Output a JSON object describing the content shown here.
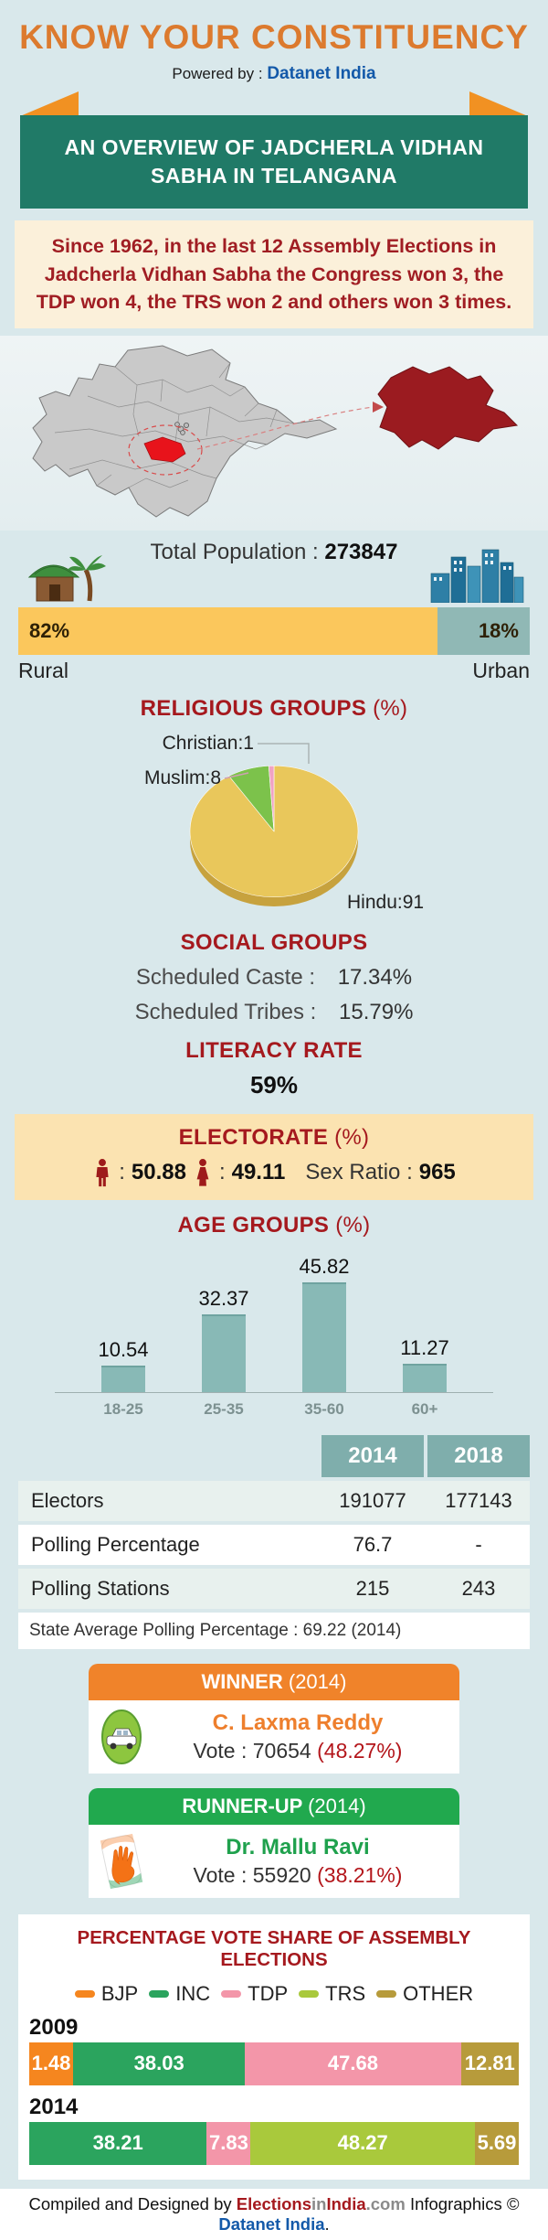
{
  "header": {
    "title": "KNOW YOUR CONSTITUENCY",
    "powered_by": "Powered by :",
    "powered_brand": "Datanet India"
  },
  "banner": {
    "text": "AN OVERVIEW OF JADCHERLA VIDHAN SABHA IN TELANGANA"
  },
  "intro": {
    "text": "Since 1962, in the last 12 Assembly Elections in Jadcherla Vidhan Sabha the Congress won 3, the TDP won 4, the TRS won 2 and others won 3 times."
  },
  "population": {
    "label": "Total Population :",
    "value": "273847",
    "rural_pct": "82%",
    "urban_pct": "18%",
    "rural_value": 82,
    "urban_value": 18,
    "rural_label": "Rural",
    "urban_label": "Urban"
  },
  "religion": {
    "heading": "RELIGIOUS GROUPS",
    "heading_suffix": "(%)"
  },
  "social": {
    "heading": "SOCIAL GROUPS",
    "rows": [
      {
        "label": "Scheduled Caste :",
        "value": "17.34%"
      },
      {
        "label": "Scheduled Tribes :",
        "value": "15.79%"
      }
    ]
  },
  "literacy": {
    "heading": "LITERACY RATE",
    "value": "59%"
  },
  "electorate": {
    "heading": "ELECTORATE",
    "heading_suffix": "(%)",
    "male_value": "50.88",
    "female_value": "49.11",
    "sex_ratio_label": "Sex Ratio :",
    "sex_ratio": "965",
    "colon": ":"
  },
  "age": {
    "heading": "AGE GROUPS",
    "heading_suffix": "(%)"
  },
  "table": {
    "columns": [
      "2014",
      "2018"
    ],
    "rows": [
      {
        "label": "Electors",
        "v2014": "191077",
        "v2018": "177143"
      },
      {
        "label": "Polling Percentage",
        "v2014": "76.7",
        "v2018": "-"
      },
      {
        "label": "Polling Stations",
        "v2014": "215",
        "v2018": "243"
      }
    ],
    "footnote": "State Average Polling Percentage : 69.22 (2014)"
  },
  "winner": {
    "heading": "WINNER",
    "year": "(2014)",
    "party": "TRS",
    "name": "C. Laxma Reddy",
    "vote": "Vote : 70654",
    "vote_pct": "(48.27%)"
  },
  "runner_up": {
    "heading": "RUNNER-UP",
    "year": "(2014)",
    "party": "INC",
    "name": "Dr. Mallu Ravi",
    "vote": "Vote : 55920",
    "vote_pct": "(38.21%)"
  },
  "footer": {
    "part1": "Compiled and Designed by",
    "brand1a": "Elections",
    "brand1b": "in",
    "brand1c": "India",
    "brand1d": ".com",
    "part2": "Infographics ©",
    "brand2": "Datanet India",
    "dot": "."
  },
  "colors": {
    "accent_orange": "#DC7A2E",
    "brand_blue": "#1359A9",
    "banner_green": "#207A67",
    "ribbon_orange": "#F19122",
    "heading_red": "#A5191E",
    "intro_bg": "#FBF0DA",
    "rural_yellow": "#FBC75C",
    "urban_teal": "#90B8B5",
    "electorate_bg": "#FBE3B1",
    "age_bar": "#88B9B6",
    "table_header": "#7FAEAC",
    "winner_orange": "#F0832A",
    "runner_green": "#21A94E",
    "vote_pct_red": "#B3151A",
    "map_region": "#C9C9C9",
    "map_highlight": "#E8131B",
    "map_constituency": "#9B1B20"
  },
  "chart_data": [
    {
      "type": "pie",
      "title": "RELIGIOUS GROUPS (%)",
      "labels": [
        "Hindu",
        "Muslim",
        "Christian"
      ],
      "values": [
        91,
        8,
        1
      ],
      "colors": [
        "#E9C75B",
        "#7CC24B",
        "#F0A3C3"
      ],
      "rim_color": "#C7A23E",
      "label_texts": [
        "Hindu:91",
        "Muslim:8",
        "Christian:1"
      ],
      "legend_position": "labels-outside"
    },
    {
      "type": "bar",
      "title": "AGE GROUPS (%)",
      "categories": [
        "18-25",
        "25-35",
        "35-60",
        "60+"
      ],
      "values": [
        10.54,
        32.37,
        45.82,
        11.27
      ],
      "bar_color": "#88B9B6",
      "xlabel": "",
      "ylabel": "",
      "ylim": [
        0,
        50
      ],
      "grid": false
    },
    {
      "type": "bar",
      "subtype": "stacked-horizontal",
      "title": "PERCENTAGE VOTE SHARE OF ASSEMBLY ELECTIONS",
      "legend": [
        "BJP",
        "INC",
        "TDP",
        "TRS",
        "OTHER"
      ],
      "party_colors": {
        "BJP": "#F5861F",
        "INC": "#2BA45E",
        "TDP": "#F396A9",
        "TRS": "#A9C93C",
        "OTHER": "#B79B3B"
      },
      "rows": [
        {
          "year": "2009",
          "segments": [
            {
              "party": "BJP",
              "value": 1.48
            },
            {
              "party": "INC",
              "value": 38.03
            },
            {
              "party": "TDP",
              "value": 47.68
            },
            {
              "party": "OTHER",
              "value": 12.81
            }
          ]
        },
        {
          "year": "2014",
          "segments": [
            {
              "party": "INC",
              "value": 38.21
            },
            {
              "party": "TDP",
              "value": 7.83
            },
            {
              "party": "TRS",
              "value": 48.27
            },
            {
              "party": "OTHER",
              "value": 5.69
            }
          ]
        }
      ],
      "xlim": [
        0,
        100
      ]
    }
  ]
}
